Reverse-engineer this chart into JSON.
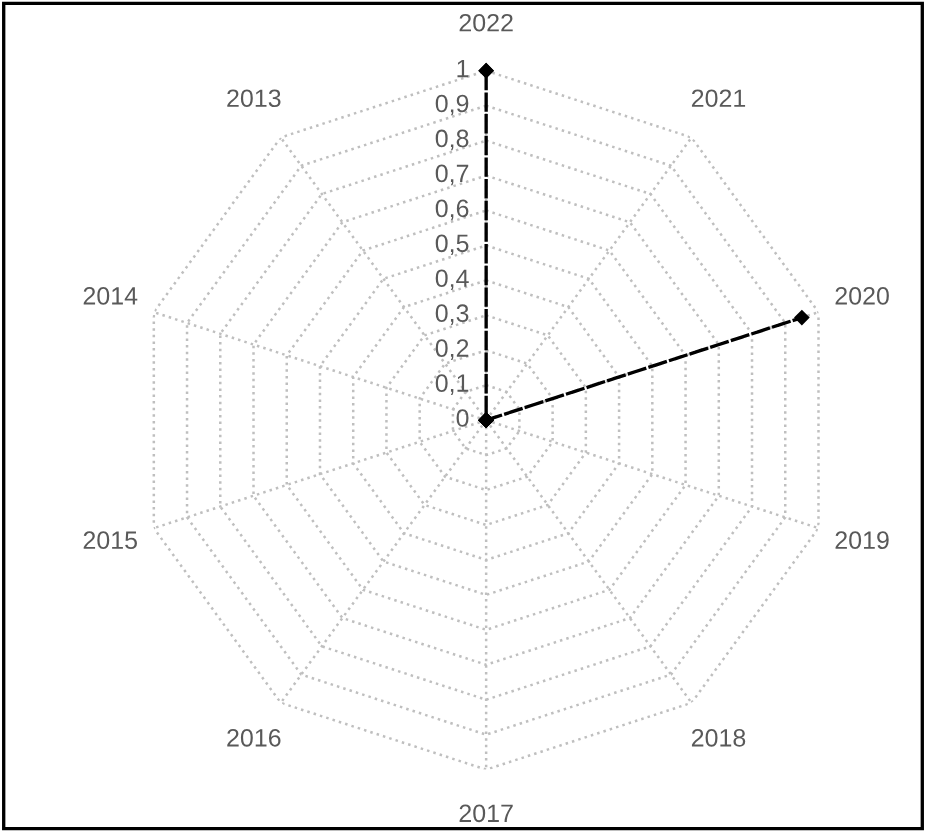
{
  "chart_data": {
    "type": "radar",
    "categories": [
      "2022",
      "2021",
      "2020",
      "2019",
      "2018",
      "2017",
      "2016",
      "2015",
      "2014",
      "2013"
    ],
    "series": [
      {
        "color": "#000000",
        "values": [
          1,
          0,
          0.95,
          0,
          0,
          0,
          0,
          0,
          0,
          0
        ]
      }
    ],
    "ylim": [
      0,
      1
    ],
    "yticks": [
      0,
      {
        "value": 0.1,
        "label": "0,1"
      },
      {
        "value": 0.2,
        "label": "0,2"
      },
      {
        "value": 0.3,
        "label": "0,3"
      },
      {
        "value": 0.4,
        "label": "0,4"
      },
      {
        "value": 0.5,
        "label": "0,5"
      },
      {
        "value": 0.6,
        "label": "0,6"
      },
      {
        "value": 0.7,
        "label": "0,7"
      },
      {
        "value": 0.8,
        "label": "0,8"
      },
      {
        "value": 0.9,
        "label": "0,9"
      },
      1
    ],
    "grid": true,
    "marker": "diamond",
    "line_style": "dashed"
  }
}
